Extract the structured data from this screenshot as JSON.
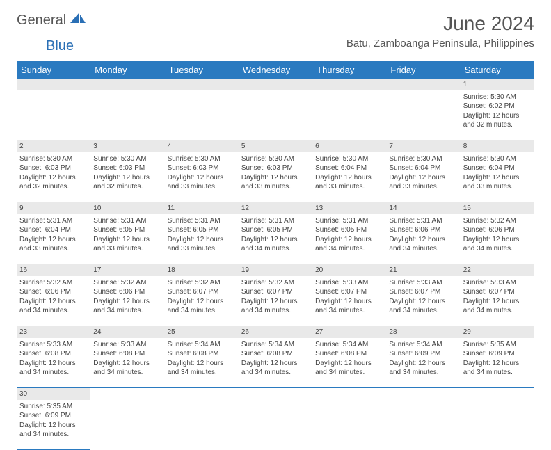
{
  "logo": {
    "general": "General",
    "blue": "Blue"
  },
  "title": "June 2024",
  "location": "Batu, Zamboanga Peninsula, Philippines",
  "dayHeaders": [
    "Sunday",
    "Monday",
    "Tuesday",
    "Wednesday",
    "Thursday",
    "Friday",
    "Saturday"
  ],
  "colors": {
    "headerBg": "#2a7ac0",
    "headerText": "#ffffff",
    "numRowBg": "#e9e9e9",
    "borderColor": "#2a7ac0",
    "logoBlue": "#2a6fb5",
    "textColor": "#444444"
  },
  "weeks": [
    [
      null,
      null,
      null,
      null,
      null,
      null,
      {
        "n": "1",
        "sr": "Sunrise: 5:30 AM",
        "ss": "Sunset: 6:02 PM",
        "dl1": "Daylight: 12 hours",
        "dl2": "and 32 minutes."
      }
    ],
    [
      {
        "n": "2",
        "sr": "Sunrise: 5:30 AM",
        "ss": "Sunset: 6:03 PM",
        "dl1": "Daylight: 12 hours",
        "dl2": "and 32 minutes."
      },
      {
        "n": "3",
        "sr": "Sunrise: 5:30 AM",
        "ss": "Sunset: 6:03 PM",
        "dl1": "Daylight: 12 hours",
        "dl2": "and 32 minutes."
      },
      {
        "n": "4",
        "sr": "Sunrise: 5:30 AM",
        "ss": "Sunset: 6:03 PM",
        "dl1": "Daylight: 12 hours",
        "dl2": "and 33 minutes."
      },
      {
        "n": "5",
        "sr": "Sunrise: 5:30 AM",
        "ss": "Sunset: 6:03 PM",
        "dl1": "Daylight: 12 hours",
        "dl2": "and 33 minutes."
      },
      {
        "n": "6",
        "sr": "Sunrise: 5:30 AM",
        "ss": "Sunset: 6:04 PM",
        "dl1": "Daylight: 12 hours",
        "dl2": "and 33 minutes."
      },
      {
        "n": "7",
        "sr": "Sunrise: 5:30 AM",
        "ss": "Sunset: 6:04 PM",
        "dl1": "Daylight: 12 hours",
        "dl2": "and 33 minutes."
      },
      {
        "n": "8",
        "sr": "Sunrise: 5:30 AM",
        "ss": "Sunset: 6:04 PM",
        "dl1": "Daylight: 12 hours",
        "dl2": "and 33 minutes."
      }
    ],
    [
      {
        "n": "9",
        "sr": "Sunrise: 5:31 AM",
        "ss": "Sunset: 6:04 PM",
        "dl1": "Daylight: 12 hours",
        "dl2": "and 33 minutes."
      },
      {
        "n": "10",
        "sr": "Sunrise: 5:31 AM",
        "ss": "Sunset: 6:05 PM",
        "dl1": "Daylight: 12 hours",
        "dl2": "and 33 minutes."
      },
      {
        "n": "11",
        "sr": "Sunrise: 5:31 AM",
        "ss": "Sunset: 6:05 PM",
        "dl1": "Daylight: 12 hours",
        "dl2": "and 33 minutes."
      },
      {
        "n": "12",
        "sr": "Sunrise: 5:31 AM",
        "ss": "Sunset: 6:05 PM",
        "dl1": "Daylight: 12 hours",
        "dl2": "and 34 minutes."
      },
      {
        "n": "13",
        "sr": "Sunrise: 5:31 AM",
        "ss": "Sunset: 6:05 PM",
        "dl1": "Daylight: 12 hours",
        "dl2": "and 34 minutes."
      },
      {
        "n": "14",
        "sr": "Sunrise: 5:31 AM",
        "ss": "Sunset: 6:06 PM",
        "dl1": "Daylight: 12 hours",
        "dl2": "and 34 minutes."
      },
      {
        "n": "15",
        "sr": "Sunrise: 5:32 AM",
        "ss": "Sunset: 6:06 PM",
        "dl1": "Daylight: 12 hours",
        "dl2": "and 34 minutes."
      }
    ],
    [
      {
        "n": "16",
        "sr": "Sunrise: 5:32 AM",
        "ss": "Sunset: 6:06 PM",
        "dl1": "Daylight: 12 hours",
        "dl2": "and 34 minutes."
      },
      {
        "n": "17",
        "sr": "Sunrise: 5:32 AM",
        "ss": "Sunset: 6:06 PM",
        "dl1": "Daylight: 12 hours",
        "dl2": "and 34 minutes."
      },
      {
        "n": "18",
        "sr": "Sunrise: 5:32 AM",
        "ss": "Sunset: 6:07 PM",
        "dl1": "Daylight: 12 hours",
        "dl2": "and 34 minutes."
      },
      {
        "n": "19",
        "sr": "Sunrise: 5:32 AM",
        "ss": "Sunset: 6:07 PM",
        "dl1": "Daylight: 12 hours",
        "dl2": "and 34 minutes."
      },
      {
        "n": "20",
        "sr": "Sunrise: 5:33 AM",
        "ss": "Sunset: 6:07 PM",
        "dl1": "Daylight: 12 hours",
        "dl2": "and 34 minutes."
      },
      {
        "n": "21",
        "sr": "Sunrise: 5:33 AM",
        "ss": "Sunset: 6:07 PM",
        "dl1": "Daylight: 12 hours",
        "dl2": "and 34 minutes."
      },
      {
        "n": "22",
        "sr": "Sunrise: 5:33 AM",
        "ss": "Sunset: 6:07 PM",
        "dl1": "Daylight: 12 hours",
        "dl2": "and 34 minutes."
      }
    ],
    [
      {
        "n": "23",
        "sr": "Sunrise: 5:33 AM",
        "ss": "Sunset: 6:08 PM",
        "dl1": "Daylight: 12 hours",
        "dl2": "and 34 minutes."
      },
      {
        "n": "24",
        "sr": "Sunrise: 5:33 AM",
        "ss": "Sunset: 6:08 PM",
        "dl1": "Daylight: 12 hours",
        "dl2": "and 34 minutes."
      },
      {
        "n": "25",
        "sr": "Sunrise: 5:34 AM",
        "ss": "Sunset: 6:08 PM",
        "dl1": "Daylight: 12 hours",
        "dl2": "and 34 minutes."
      },
      {
        "n": "26",
        "sr": "Sunrise: 5:34 AM",
        "ss": "Sunset: 6:08 PM",
        "dl1": "Daylight: 12 hours",
        "dl2": "and 34 minutes."
      },
      {
        "n": "27",
        "sr": "Sunrise: 5:34 AM",
        "ss": "Sunset: 6:08 PM",
        "dl1": "Daylight: 12 hours",
        "dl2": "and 34 minutes."
      },
      {
        "n": "28",
        "sr": "Sunrise: 5:34 AM",
        "ss": "Sunset: 6:09 PM",
        "dl1": "Daylight: 12 hours",
        "dl2": "and 34 minutes."
      },
      {
        "n": "29",
        "sr": "Sunrise: 5:35 AM",
        "ss": "Sunset: 6:09 PM",
        "dl1": "Daylight: 12 hours",
        "dl2": "and 34 minutes."
      }
    ],
    [
      {
        "n": "30",
        "sr": "Sunrise: 5:35 AM",
        "ss": "Sunset: 6:09 PM",
        "dl1": "Daylight: 12 hours",
        "dl2": "and 34 minutes."
      },
      null,
      null,
      null,
      null,
      null,
      null
    ]
  ]
}
